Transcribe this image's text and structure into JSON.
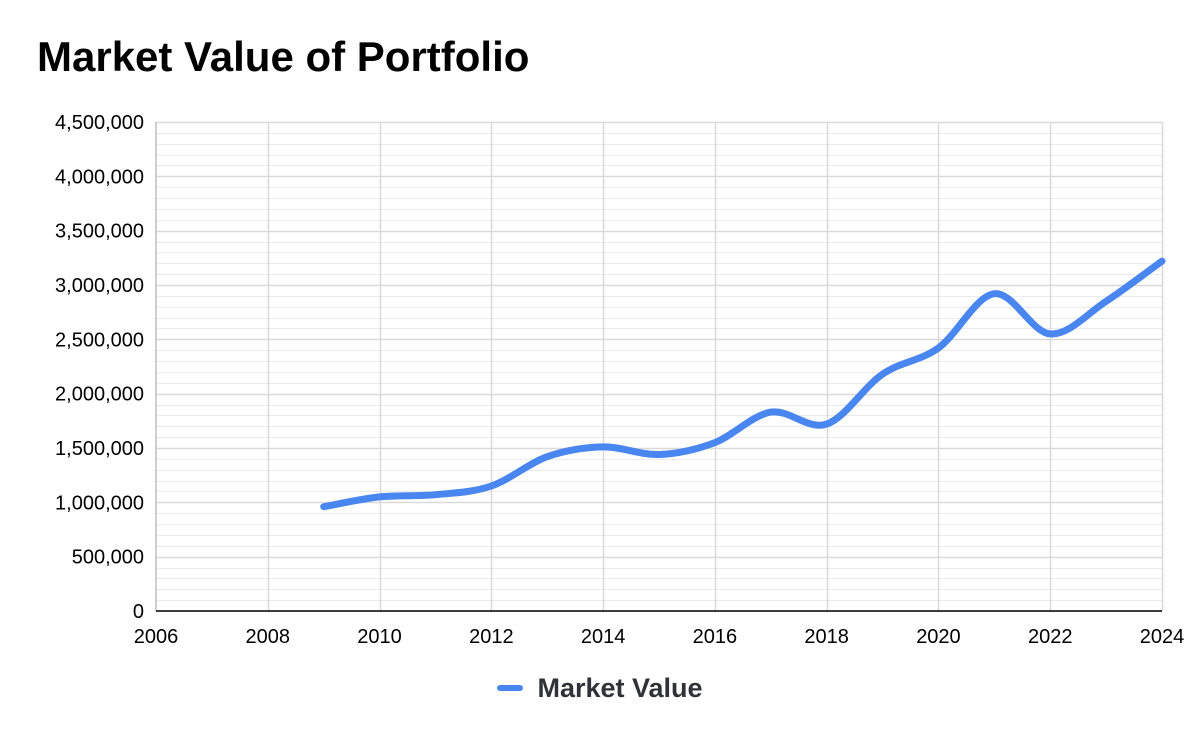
{
  "colors": {
    "series": "#4a86f0",
    "grid": "#d9d9d9",
    "minor_grid": "#ebebeb",
    "axis": "#000000"
  },
  "chart_data": {
    "type": "line",
    "title": "Market Value of Portfolio",
    "xlabel": "",
    "ylabel": "",
    "xlim": [
      2006,
      2024
    ],
    "ylim": [
      0,
      4500000
    ],
    "x_ticks": [
      "2006",
      "2008",
      "2010",
      "2012",
      "2014",
      "2016",
      "2018",
      "2020",
      "2022",
      "2024"
    ],
    "y_ticks": [
      "0",
      "500,000",
      "1,000,000",
      "1,500,000",
      "2,000,000",
      "2,500,000",
      "3,000,000",
      "3,500,000",
      "4,000,000",
      "4,500,000"
    ],
    "grid": true,
    "smooth": true,
    "legend_position": "bottom",
    "series": [
      {
        "name": "Market Value",
        "x": [
          2009,
          2010,
          2011,
          2012,
          2013,
          2014,
          2015,
          2016,
          2017,
          2018,
          2019,
          2020,
          2021,
          2022,
          2023,
          2024
        ],
        "y": [
          960000,
          1050000,
          1070000,
          1150000,
          1420000,
          1510000,
          1440000,
          1550000,
          1830000,
          1720000,
          2180000,
          2420000,
          2920000,
          2550000,
          2850000,
          3220000
        ]
      }
    ]
  }
}
